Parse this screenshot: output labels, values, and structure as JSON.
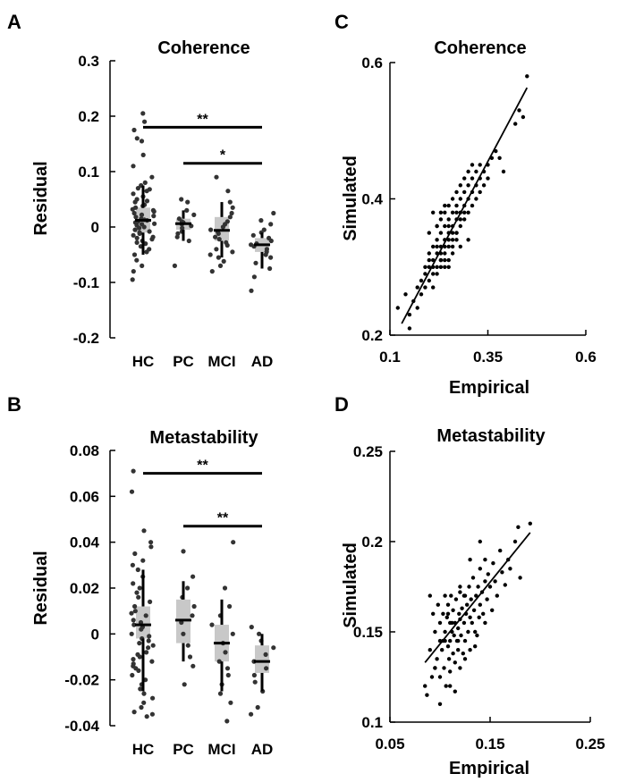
{
  "chart_data": [
    {
      "panel": "A",
      "type": "strip",
      "title": "Coherence",
      "xlabel": "",
      "ylabel": "Residual",
      "categories": [
        "HC",
        "PC",
        "MCI",
        "AD"
      ],
      "ylim": [
        -0.2,
        0.3
      ],
      "yticks": [
        "-0.2",
        "-0.1",
        "0",
        "0.1",
        "0.2",
        "0.3"
      ],
      "yticks_values": [
        -0.2,
        -0.1,
        0,
        0.1,
        0.2,
        0.3
      ],
      "summary": [
        {
          "group": "HC",
          "median": 0.012,
          "q1": -0.01,
          "q3": 0.035,
          "whisker_low": -0.05,
          "whisker_high": 0.075
        },
        {
          "group": "PC",
          "median": 0.006,
          "q1": -0.005,
          "q3": 0.015,
          "whisker_low": -0.025,
          "whisker_high": 0.03
        },
        {
          "group": "MCI",
          "median": -0.006,
          "q1": -0.025,
          "q3": 0.018,
          "whisker_low": -0.055,
          "whisker_high": 0.045
        },
        {
          "group": "AD",
          "median": -0.032,
          "q1": -0.045,
          "q3": -0.02,
          "whisker_low": -0.075,
          "whisker_high": -0.01
        }
      ],
      "points": [
        {
          "group": "HC",
          "values": [
            0.205,
            0.19,
            0.175,
            0.16,
            0.155,
            0.13,
            0.11,
            0.09,
            0.08,
            0.075,
            0.07,
            0.068,
            0.065,
            0.06,
            0.055,
            0.05,
            0.047,
            0.045,
            0.04,
            0.038,
            0.035,
            0.032,
            0.03,
            0.028,
            0.025,
            0.022,
            0.02,
            0.018,
            0.015,
            0.013,
            0.012,
            0.01,
            0.008,
            0.006,
            0.005,
            0.003,
            0.0,
            -0.002,
            -0.005,
            -0.008,
            -0.01,
            -0.012,
            -0.015,
            -0.018,
            -0.02,
            -0.022,
            -0.025,
            -0.028,
            -0.03,
            -0.035,
            -0.04,
            -0.045,
            -0.05,
            -0.06,
            -0.07,
            -0.08,
            -0.095
          ]
        },
        {
          "group": "PC",
          "values": [
            0.05,
            0.045,
            0.03,
            0.022,
            0.015,
            0.01,
            0.008,
            0.005,
            0.002,
            -0.002,
            -0.008,
            -0.012,
            -0.018,
            -0.025,
            -0.07
          ]
        },
        {
          "group": "MCI",
          "values": [
            0.09,
            0.065,
            0.045,
            0.035,
            0.025,
            0.018,
            0.01,
            0.005,
            0.0,
            -0.005,
            -0.008,
            -0.012,
            -0.018,
            -0.022,
            -0.028,
            -0.033,
            -0.04,
            -0.045,
            -0.05,
            -0.055,
            -0.062,
            -0.07,
            -0.08
          ]
        },
        {
          "group": "AD",
          "values": [
            0.025,
            0.012,
            0.005,
            -0.005,
            -0.01,
            -0.015,
            -0.02,
            -0.025,
            -0.03,
            -0.032,
            -0.035,
            -0.04,
            -0.045,
            -0.05,
            -0.055,
            -0.065,
            -0.075,
            -0.09,
            -0.115
          ]
        }
      ],
      "significance": [
        {
          "from": "HC",
          "to": "AD",
          "y": 0.18,
          "label": "**"
        },
        {
          "from": "PC",
          "to": "AD",
          "y": 0.115,
          "label": "*"
        }
      ]
    },
    {
      "panel": "B",
      "type": "strip",
      "title": "Metastability",
      "xlabel": "",
      "ylabel": "Residual",
      "categories": [
        "HC",
        "PC",
        "MCI",
        "AD"
      ],
      "ylim": [
        -0.04,
        0.08
      ],
      "yticks": [
        "-0.04",
        "-0.02",
        "0",
        "0.02",
        "0.04",
        "0.06",
        "0.08"
      ],
      "yticks_values": [
        -0.04,
        -0.02,
        0,
        0.02,
        0.04,
        0.06,
        0.08
      ],
      "summary": [
        {
          "group": "HC",
          "median": 0.004,
          "q1": -0.002,
          "q3": 0.012,
          "whisker_low": -0.025,
          "whisker_high": 0.028
        },
        {
          "group": "PC",
          "median": 0.006,
          "q1": -0.004,
          "q3": 0.015,
          "whisker_low": -0.012,
          "whisker_high": 0.023
        },
        {
          "group": "MCI",
          "median": -0.004,
          "q1": -0.012,
          "q3": 0.004,
          "whisker_low": -0.025,
          "whisker_high": 0.015
        },
        {
          "group": "AD",
          "median": -0.012,
          "q1": -0.017,
          "q3": -0.005,
          "whisker_low": -0.025,
          "whisker_high": 0.0
        }
      ],
      "points": [
        {
          "group": "HC",
          "values": [
            0.071,
            0.062,
            0.045,
            0.04,
            0.038,
            0.035,
            0.032,
            0.03,
            0.028,
            0.025,
            0.022,
            0.02,
            0.018,
            0.016,
            0.014,
            0.012,
            0.01,
            0.009,
            0.008,
            0.006,
            0.005,
            0.004,
            0.003,
            0.002,
            0.0,
            -0.001,
            -0.002,
            -0.003,
            -0.004,
            -0.005,
            -0.006,
            -0.008,
            -0.009,
            -0.01,
            -0.011,
            -0.012,
            -0.013,
            -0.014,
            -0.015,
            -0.016,
            -0.018,
            -0.02,
            -0.022,
            -0.024,
            -0.026,
            -0.028,
            -0.03,
            -0.032,
            -0.034,
            -0.035,
            -0.036
          ]
        },
        {
          "group": "PC",
          "values": [
            0.036,
            0.025,
            0.02,
            0.016,
            0.012,
            0.008,
            0.005,
            0.0,
            -0.005,
            -0.01,
            -0.014,
            -0.022
          ]
        },
        {
          "group": "MCI",
          "values": [
            0.04,
            0.02,
            0.012,
            0.008,
            0.004,
            0.0,
            -0.004,
            -0.008,
            -0.012,
            -0.015,
            -0.018,
            -0.022,
            -0.026,
            -0.03,
            -0.038
          ]
        },
        {
          "group": "AD",
          "values": [
            0.003,
            0.0,
            -0.003,
            -0.006,
            -0.009,
            -0.012,
            -0.015,
            -0.018,
            -0.021,
            -0.025,
            -0.032,
            -0.035
          ]
        }
      ],
      "significance": [
        {
          "from": "HC",
          "to": "AD",
          "y": 0.07,
          "label": "**"
        },
        {
          "from": "PC",
          "to": "AD",
          "y": 0.047,
          "label": "**"
        }
      ]
    },
    {
      "panel": "C",
      "type": "scatter",
      "title": "Coherence",
      "xlabel": "Empirical",
      "ylabel": "Simulated",
      "xlim": [
        0.1,
        0.6
      ],
      "ylim": [
        0.2,
        0.6
      ],
      "xticks": [
        "0.1",
        "0.35",
        "0.6"
      ],
      "xticks_values": [
        0.1,
        0.35,
        0.6
      ],
      "yticks": [
        "0.2",
        "0.4",
        "0.6"
      ],
      "yticks_values": [
        0.2,
        0.4,
        0.6
      ],
      "fit_line": {
        "x": [
          0.13,
          0.45
        ],
        "y": [
          0.217,
          0.563
        ]
      },
      "x": [
        0.12,
        0.14,
        0.15,
        0.15,
        0.16,
        0.17,
        0.17,
        0.18,
        0.18,
        0.19,
        0.19,
        0.19,
        0.2,
        0.2,
        0.2,
        0.2,
        0.21,
        0.21,
        0.21,
        0.21,
        0.21,
        0.22,
        0.22,
        0.22,
        0.22,
        0.22,
        0.22,
        0.23,
        0.23,
        0.23,
        0.23,
        0.23,
        0.23,
        0.23,
        0.24,
        0.24,
        0.24,
        0.24,
        0.24,
        0.24,
        0.24,
        0.25,
        0.25,
        0.25,
        0.25,
        0.25,
        0.25,
        0.25,
        0.26,
        0.26,
        0.26,
        0.26,
        0.26,
        0.26,
        0.27,
        0.27,
        0.27,
        0.27,
        0.27,
        0.27,
        0.28,
        0.28,
        0.28,
        0.28,
        0.28,
        0.29,
        0.29,
        0.29,
        0.29,
        0.29,
        0.3,
        0.3,
        0.3,
        0.3,
        0.31,
        0.31,
        0.31,
        0.31,
        0.32,
        0.32,
        0.32,
        0.33,
        0.33,
        0.33,
        0.34,
        0.34,
        0.35,
        0.35,
        0.36,
        0.37,
        0.38,
        0.39,
        0.2,
        0.22,
        0.24,
        0.26,
        0.28,
        0.3,
        0.21,
        0.23,
        0.25,
        0.27,
        0.42,
        0.43,
        0.44,
        0.45
      ],
      "y": [
        0.24,
        0.26,
        0.23,
        0.21,
        0.25,
        0.27,
        0.24,
        0.28,
        0.26,
        0.29,
        0.27,
        0.3,
        0.3,
        0.28,
        0.31,
        0.32,
        0.29,
        0.31,
        0.33,
        0.27,
        0.3,
        0.32,
        0.34,
        0.3,
        0.29,
        0.33,
        0.36,
        0.31,
        0.33,
        0.35,
        0.37,
        0.3,
        0.32,
        0.38,
        0.34,
        0.32,
        0.36,
        0.38,
        0.3,
        0.31,
        0.33,
        0.35,
        0.33,
        0.37,
        0.39,
        0.31,
        0.34,
        0.36,
        0.36,
        0.34,
        0.38,
        0.4,
        0.33,
        0.35,
        0.37,
        0.35,
        0.39,
        0.41,
        0.34,
        0.38,
        0.38,
        0.36,
        0.4,
        0.42,
        0.37,
        0.39,
        0.37,
        0.41,
        0.43,
        0.38,
        0.4,
        0.38,
        0.42,
        0.44,
        0.41,
        0.39,
        0.43,
        0.45,
        0.42,
        0.4,
        0.44,
        0.43,
        0.41,
        0.45,
        0.44,
        0.42,
        0.45,
        0.43,
        0.46,
        0.47,
        0.46,
        0.44,
        0.35,
        0.36,
        0.39,
        0.32,
        0.33,
        0.34,
        0.38,
        0.31,
        0.3,
        0.35,
        0.51,
        0.53,
        0.52,
        0.58
      ]
    },
    {
      "panel": "D",
      "type": "scatter",
      "title": "Metastability",
      "xlabel": "Empirical",
      "ylabel": "Simulated",
      "xlim": [
        0.05,
        0.25
      ],
      "ylim": [
        0.1,
        0.25
      ],
      "xticks": [
        "0.05",
        "0.15",
        "0.25"
      ],
      "xticks_values": [
        0.05,
        0.15,
        0.25
      ],
      "yticks": [
        "0.1",
        "0.15",
        "0.2",
        "0.25"
      ],
      "yticks_values": [
        0.1,
        0.15,
        0.2,
        0.25
      ],
      "fit_line": {
        "x": [
          0.085,
          0.19
        ],
        "y": [
          0.133,
          0.205
        ]
      },
      "x": [
        0.085,
        0.087,
        0.09,
        0.09,
        0.092,
        0.093,
        0.095,
        0.095,
        0.097,
        0.098,
        0.1,
        0.1,
        0.1,
        0.102,
        0.103,
        0.104,
        0.105,
        0.105,
        0.106,
        0.107,
        0.108,
        0.108,
        0.109,
        0.11,
        0.11,
        0.11,
        0.111,
        0.112,
        0.113,
        0.113,
        0.114,
        0.115,
        0.115,
        0.116,
        0.117,
        0.118,
        0.118,
        0.119,
        0.12,
        0.12,
        0.12,
        0.121,
        0.122,
        0.123,
        0.124,
        0.125,
        0.125,
        0.126,
        0.127,
        0.128,
        0.129,
        0.13,
        0.13,
        0.131,
        0.132,
        0.133,
        0.134,
        0.135,
        0.136,
        0.137,
        0.138,
        0.139,
        0.14,
        0.14,
        0.142,
        0.143,
        0.145,
        0.145,
        0.147,
        0.148,
        0.15,
        0.152,
        0.153,
        0.155,
        0.157,
        0.16,
        0.162,
        0.165,
        0.168,
        0.17,
        0.175,
        0.178,
        0.18,
        0.19,
        0.095,
        0.1,
        0.105,
        0.11,
        0.115,
        0.12,
        0.125,
        0.13,
        0.135,
        0.14,
        0.145,
        0.112,
        0.118,
        0.124,
        0.103,
        0.108
      ],
      "y": [
        0.12,
        0.115,
        0.14,
        0.17,
        0.125,
        0.16,
        0.13,
        0.15,
        0.135,
        0.165,
        0.145,
        0.11,
        0.155,
        0.14,
        0.16,
        0.13,
        0.15,
        0.17,
        0.12,
        0.158,
        0.142,
        0.165,
        0.135,
        0.155,
        0.145,
        0.128,
        0.17,
        0.15,
        0.138,
        0.162,
        0.148,
        0.155,
        0.133,
        0.168,
        0.145,
        0.152,
        0.14,
        0.16,
        0.157,
        0.13,
        0.172,
        0.148,
        0.163,
        0.138,
        0.155,
        0.17,
        0.145,
        0.16,
        0.165,
        0.15,
        0.175,
        0.158,
        0.14,
        0.168,
        0.155,
        0.18,
        0.162,
        0.15,
        0.17,
        0.148,
        0.175,
        0.158,
        0.185,
        0.165,
        0.172,
        0.16,
        0.178,
        0.19,
        0.168,
        0.182,
        0.175,
        0.162,
        0.188,
        0.178,
        0.17,
        0.195,
        0.183,
        0.176,
        0.19,
        0.185,
        0.2,
        0.208,
        0.18,
        0.21,
        0.13,
        0.125,
        0.145,
        0.12,
        0.117,
        0.175,
        0.135,
        0.19,
        0.142,
        0.2,
        0.155,
        0.155,
        0.145,
        0.17,
        0.145,
        0.16
      ]
    }
  ]
}
